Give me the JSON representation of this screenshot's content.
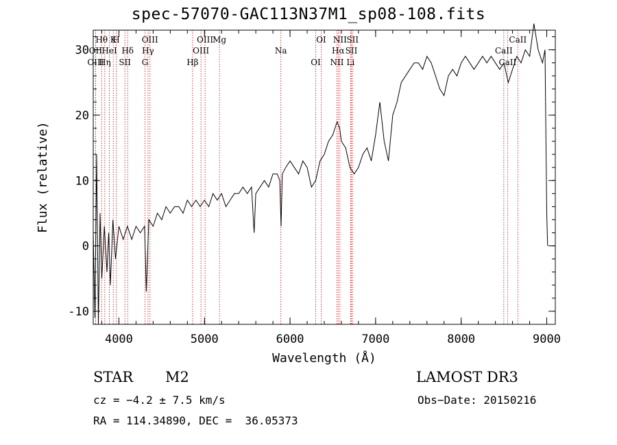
{
  "chart_data": {
    "type": "line",
    "title": "spec-57070-GAC113N37M1_sp08-108.fits",
    "xlabel": "Wavelength (Å)",
    "ylabel": "Flux (relative)",
    "xlim": [
      3700,
      9100
    ],
    "ylim": [
      -12,
      33
    ],
    "xticks": [
      4000,
      5000,
      6000,
      7000,
      8000,
      9000
    ],
    "yticks": [
      -10,
      0,
      10,
      20,
      30
    ],
    "series": [
      {
        "name": "spectrum",
        "x": [
          3700,
          3720,
          3740,
          3760,
          3780,
          3800,
          3830,
          3860,
          3880,
          3900,
          3930,
          3960,
          4000,
          4050,
          4100,
          4150,
          4200,
          4250,
          4300,
          4320,
          4350,
          4400,
          4450,
          4500,
          4550,
          4600,
          4650,
          4700,
          4750,
          4800,
          4850,
          4900,
          4950,
          5000,
          5050,
          5100,
          5150,
          5200,
          5250,
          5300,
          5350,
          5400,
          5450,
          5500,
          5550,
          5580,
          5600,
          5650,
          5700,
          5750,
          5800,
          5850,
          5880,
          5895,
          5910,
          5950,
          6000,
          6050,
          6100,
          6150,
          6200,
          6250,
          6300,
          6350,
          6400,
          6450,
          6500,
          6550,
          6580,
          6600,
          6650,
          6700,
          6750,
          6800,
          6850,
          6900,
          6950,
          7000,
          7050,
          7100,
          7150,
          7200,
          7250,
          7300,
          7350,
          7400,
          7450,
          7500,
          7550,
          7600,
          7650,
          7700,
          7750,
          7800,
          7850,
          7900,
          7950,
          8000,
          8050,
          8100,
          8150,
          8200,
          8250,
          8300,
          8350,
          8400,
          8450,
          8500,
          8550,
          8600,
          8650,
          8700,
          8750,
          8800,
          8850,
          8900,
          8950,
          8980,
          9000,
          9010
        ],
        "y": [
          2,
          -11,
          14,
          -12,
          5,
          -5,
          3,
          -4,
          2,
          -6,
          4,
          -2,
          3,
          1,
          3,
          1,
          3,
          2,
          3,
          -7,
          4,
          3,
          5,
          4,
          6,
          5,
          6,
          6,
          5,
          7,
          6,
          7,
          6,
          7,
          6,
          8,
          7,
          8,
          6,
          7,
          8,
          8,
          9,
          8,
          9,
          2,
          8,
          9,
          10,
          9,
          11,
          11,
          10,
          3,
          11,
          12,
          13,
          12,
          11,
          13,
          12,
          9,
          10,
          13,
          14,
          16,
          17,
          19,
          18,
          16,
          15,
          12,
          11,
          12,
          14,
          15,
          13,
          17,
          22,
          16,
          13,
          20,
          22,
          25,
          26,
          27,
          28,
          28,
          27,
          29,
          28,
          26,
          24,
          23,
          26,
          27,
          26,
          28,
          29,
          28,
          27,
          28,
          29,
          28,
          29,
          28,
          27,
          28,
          25,
          27,
          29,
          28,
          30,
          29,
          34,
          30,
          28,
          30,
          5,
          0
        ]
      }
    ],
    "lines": [
      {
        "label": "Hθ",
        "x": 3798
      },
      {
        "label": "OII",
        "x": 3727
      },
      {
        "label": "OIII",
        "x": 3727
      },
      {
        "label": "K",
        "x": 3934
      },
      {
        "label": "HeI",
        "x": 3889
      },
      {
        "label": "Hη",
        "x": 3835
      },
      {
        "label": "H",
        "x": 3968
      },
      {
        "label": "Hδ",
        "x": 4102
      },
      {
        "label": "SII",
        "x": 4070
      },
      {
        "label": "OIII",
        "x": 4363
      },
      {
        "label": "Hγ",
        "x": 4340
      },
      {
        "label": "G",
        "x": 4305
      },
      {
        "label": "OIII",
        "x": 5007
      },
      {
        "label": "OIII",
        "x": 4959
      },
      {
        "label": "Hβ",
        "x": 4861
      },
      {
        "label": "Mg",
        "x": 5175
      },
      {
        "label": "Na",
        "x": 5893
      },
      {
        "label": "OI",
        "x": 6300
      },
      {
        "label": "OI",
        "x": 6364
      },
      {
        "label": "Hα",
        "x": 6563
      },
      {
        "label": "NII",
        "x": 6548
      },
      {
        "label": "NII",
        "x": 6583
      },
      {
        "label": "SII",
        "x": 6717
      },
      {
        "label": "Li",
        "x": 6708
      },
      {
        "label": "SII",
        "x": 6731
      },
      {
        "label": "CaII",
        "x": 8498
      },
      {
        "label": "CaII",
        "x": 8542
      },
      {
        "label": "CaII",
        "x": 8662
      }
    ]
  },
  "info": {
    "class": "STAR",
    "subclass": "M2",
    "survey": "LAMOST DR3",
    "cz": "cz = −4.2 ± 7.5 km/s",
    "obs_date": "Obs−Date: 20150216",
    "coords": "RA = 114.34890, DEC =  36.05373"
  },
  "colors": {
    "axes": "#000000",
    "line": "#000000",
    "marker": "#cc0000"
  }
}
